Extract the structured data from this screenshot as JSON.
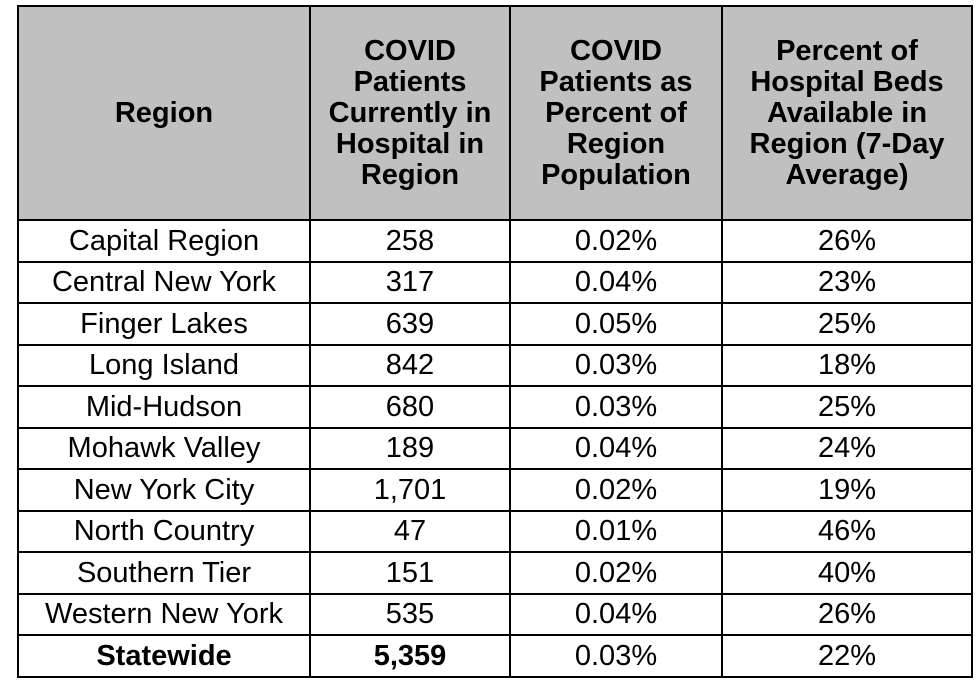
{
  "chart_data": {
    "type": "table",
    "columns": [
      "Region",
      "COVID Patients Currently in Hospital in Region",
      "COVID Patients as Percent of Region Population",
      "Percent of Hospital Beds Available in Region (7-Day Average)"
    ],
    "rows": [
      [
        "Capital Region",
        "258",
        "0.02%",
        "26%"
      ],
      [
        "Central New York",
        "317",
        "0.04%",
        "23%"
      ],
      [
        "Finger Lakes",
        "639",
        "0.05%",
        "25%"
      ],
      [
        "Long Island",
        "842",
        "0.03%",
        "18%"
      ],
      [
        "Mid-Hudson",
        "680",
        "0.03%",
        "25%"
      ],
      [
        "Mohawk Valley",
        "189",
        "0.04%",
        "24%"
      ],
      [
        "New York City",
        "1,701",
        "0.02%",
        "19%"
      ],
      [
        "North Country",
        "47",
        "0.01%",
        "46%"
      ],
      [
        "Southern Tier",
        "151",
        "0.02%",
        "40%"
      ],
      [
        "Western New York",
        "535",
        "0.04%",
        "26%"
      ]
    ],
    "total_row": [
      "Statewide",
      "5,359",
      "0.03%",
      "22%"
    ],
    "header_bg": "#c0c0c0"
  }
}
